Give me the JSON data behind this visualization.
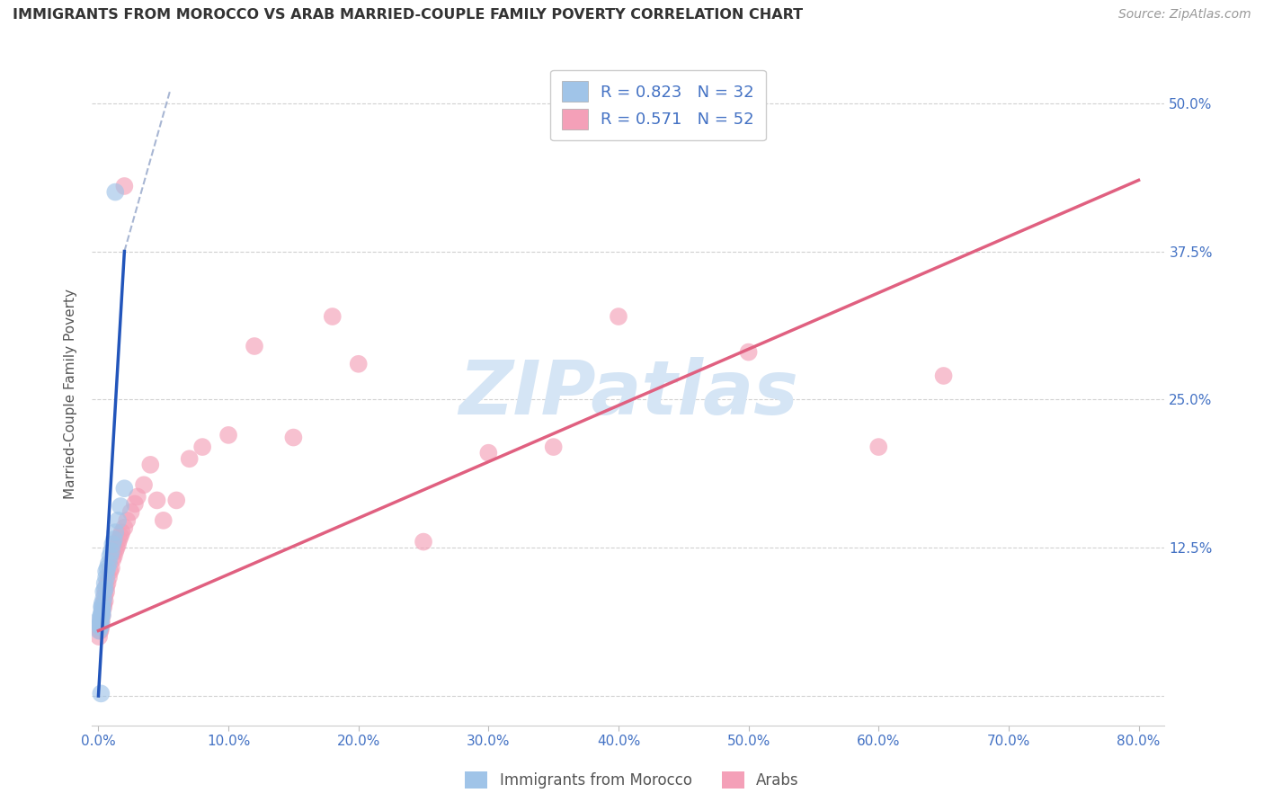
{
  "title": "IMMIGRANTS FROM MOROCCO VS ARAB MARRIED-COUPLE FAMILY POVERTY CORRELATION CHART",
  "source": "Source: ZipAtlas.com",
  "ylabel_label": "Married-Couple Family Poverty",
  "legend_label1": "Immigrants from Morocco",
  "legend_label2": "Arabs",
  "R1": 0.823,
  "N1": 32,
  "R2": 0.571,
  "N2": 52,
  "color_blue": "#a0c4e8",
  "color_pink": "#f4a0b8",
  "color_blue_line": "#2255bb",
  "color_pink_line": "#e06080",
  "color_dash": "#99aacc",
  "watermark": "ZIPatlas",
  "watermark_color": "#d5e5f5",
  "xlim": [
    -0.005,
    0.82
  ],
  "ylim": [
    -0.025,
    0.535
  ],
  "xticks": [
    0.0,
    0.1,
    0.2,
    0.3,
    0.4,
    0.5,
    0.6,
    0.7,
    0.8
  ],
  "yticks": [
    0.0,
    0.125,
    0.25,
    0.375,
    0.5
  ],
  "xtick_labels": [
    "0.0%",
    "10.0%",
    "20.0%",
    "30.0%",
    "40.0%",
    "50.0%",
    "60.0%",
    "70.0%",
    "80.0%"
  ],
  "ytick_labels_right": [
    "",
    "12.5%",
    "25.0%",
    "37.5%",
    "50.0%"
  ],
  "tick_color": "#4472c4",
  "morocco_x": [
    0.0005,
    0.001,
    0.001,
    0.0015,
    0.0015,
    0.002,
    0.002,
    0.002,
    0.0025,
    0.0025,
    0.003,
    0.003,
    0.003,
    0.003,
    0.004,
    0.004,
    0.005,
    0.005,
    0.006,
    0.006,
    0.007,
    0.008,
    0.009,
    0.01,
    0.011,
    0.012,
    0.013,
    0.015,
    0.017,
    0.02,
    0.013,
    0.002
  ],
  "morocco_y": [
    0.055,
    0.06,
    0.065,
    0.058,
    0.062,
    0.06,
    0.065,
    0.068,
    0.07,
    0.075,
    0.068,
    0.072,
    0.075,
    0.078,
    0.082,
    0.088,
    0.09,
    0.095,
    0.1,
    0.105,
    0.108,
    0.112,
    0.118,
    0.122,
    0.128,
    0.132,
    0.138,
    0.148,
    0.16,
    0.175,
    0.425,
    0.002
  ],
  "arab_x": [
    0.0005,
    0.001,
    0.001,
    0.0015,
    0.002,
    0.002,
    0.0025,
    0.003,
    0.003,
    0.004,
    0.004,
    0.005,
    0.005,
    0.006,
    0.006,
    0.007,
    0.008,
    0.009,
    0.01,
    0.011,
    0.012,
    0.013,
    0.014,
    0.015,
    0.016,
    0.017,
    0.018,
    0.02,
    0.022,
    0.025,
    0.028,
    0.03,
    0.035,
    0.04,
    0.045,
    0.05,
    0.06,
    0.07,
    0.08,
    0.1,
    0.12,
    0.15,
    0.18,
    0.2,
    0.25,
    0.3,
    0.35,
    0.4,
    0.5,
    0.6,
    0.65,
    0.02
  ],
  "arab_y": [
    0.05,
    0.055,
    0.06,
    0.055,
    0.058,
    0.065,
    0.062,
    0.068,
    0.072,
    0.075,
    0.078,
    0.08,
    0.085,
    0.088,
    0.092,
    0.095,
    0.1,
    0.105,
    0.108,
    0.115,
    0.118,
    0.122,
    0.125,
    0.128,
    0.132,
    0.135,
    0.138,
    0.142,
    0.148,
    0.155,
    0.162,
    0.168,
    0.178,
    0.195,
    0.165,
    0.148,
    0.165,
    0.2,
    0.21,
    0.22,
    0.295,
    0.218,
    0.32,
    0.28,
    0.13,
    0.205,
    0.21,
    0.32,
    0.29,
    0.21,
    0.27,
    0.43
  ],
  "blue_line_x": [
    0.0,
    0.02
  ],
  "blue_line_y": [
    0.0,
    0.375
  ],
  "pink_line_x": [
    0.0,
    0.8
  ],
  "pink_line_y": [
    0.055,
    0.435
  ],
  "dash_line_x": [
    0.02,
    0.055
  ],
  "dash_line_y": [
    0.375,
    0.51
  ]
}
